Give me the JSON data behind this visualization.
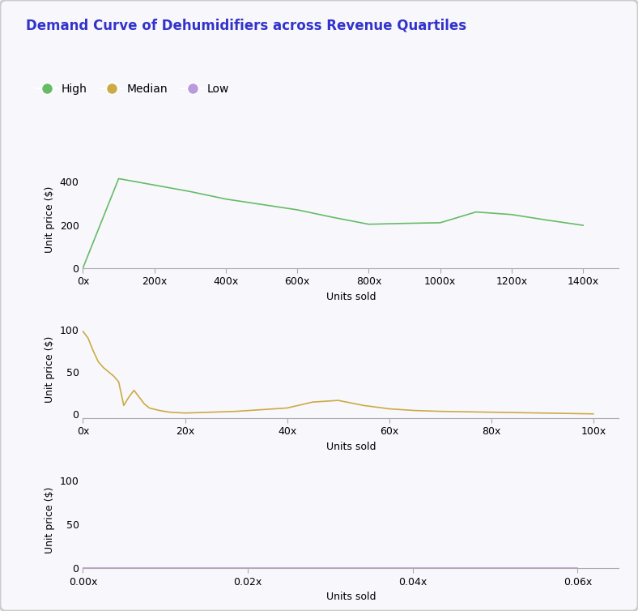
{
  "title": "Demand Curve of Dehumidifiers across Revenue Quartiles",
  "title_color": "#3333cc",
  "legend_items": [
    "High",
    "Median",
    "Low"
  ],
  "legend_colors": [
    "#66bb66",
    "#ccaa44",
    "#bb99dd"
  ],
  "high": {
    "x": [
      0,
      100,
      200,
      300,
      400,
      500,
      600,
      700,
      800,
      900,
      1000,
      1100,
      1200,
      1300,
      1400
    ],
    "y": [
      0,
      415,
      385,
      355,
      320,
      295,
      270,
      235,
      203,
      207,
      210,
      260,
      248,
      222,
      198
    ],
    "color": "#66bb66",
    "xlabel": "Units sold",
    "ylabel": "Unit price ($)",
    "xlim": [
      0,
      1500
    ],
    "ylim": [
      0,
      450
    ],
    "xticks": [
      0,
      200,
      400,
      600,
      800,
      1000,
      1200,
      1400
    ],
    "yticks": [
      0,
      200,
      400
    ]
  },
  "median": {
    "x": [
      0,
      1,
      2,
      3,
      4,
      5,
      6,
      7,
      8,
      9,
      10,
      11,
      12,
      13,
      15,
      17,
      20,
      25,
      30,
      35,
      40,
      45,
      50,
      55,
      60,
      65,
      70,
      80,
      90,
      100
    ],
    "y": [
      98,
      90,
      75,
      62,
      55,
      50,
      45,
      38,
      10,
      20,
      28,
      20,
      12,
      7,
      4,
      2,
      1,
      2,
      3,
      5,
      7,
      14,
      16,
      10,
      6,
      4,
      3,
      2,
      1,
      0
    ],
    "color": "#ccaa44",
    "xlabel": "Units sold",
    "ylabel": "Unit price ($)",
    "xlim": [
      0,
      105
    ],
    "ylim": [
      -5,
      110
    ],
    "xticks": [
      0,
      20,
      40,
      60,
      80,
      100
    ],
    "yticks": [
      0,
      50,
      100
    ]
  },
  "low": {
    "x": [
      0.0,
      0.01,
      0.02,
      0.03,
      0.04,
      0.05,
      0.06
    ],
    "y": [
      0,
      0,
      0,
      0,
      0,
      0,
      0
    ],
    "color": "#bb99dd",
    "xlabel": "Units sold",
    "ylabel": "Unit price ($)",
    "xlim": [
      0,
      0.065
    ],
    "ylim": [
      0,
      110
    ],
    "xticks": [
      0.0,
      0.02,
      0.04,
      0.06
    ],
    "yticks": [
      0,
      50,
      100
    ]
  },
  "bg_color": "#f8f8fc",
  "figsize": [
    7.88,
    7.54
  ],
  "dpi": 100
}
